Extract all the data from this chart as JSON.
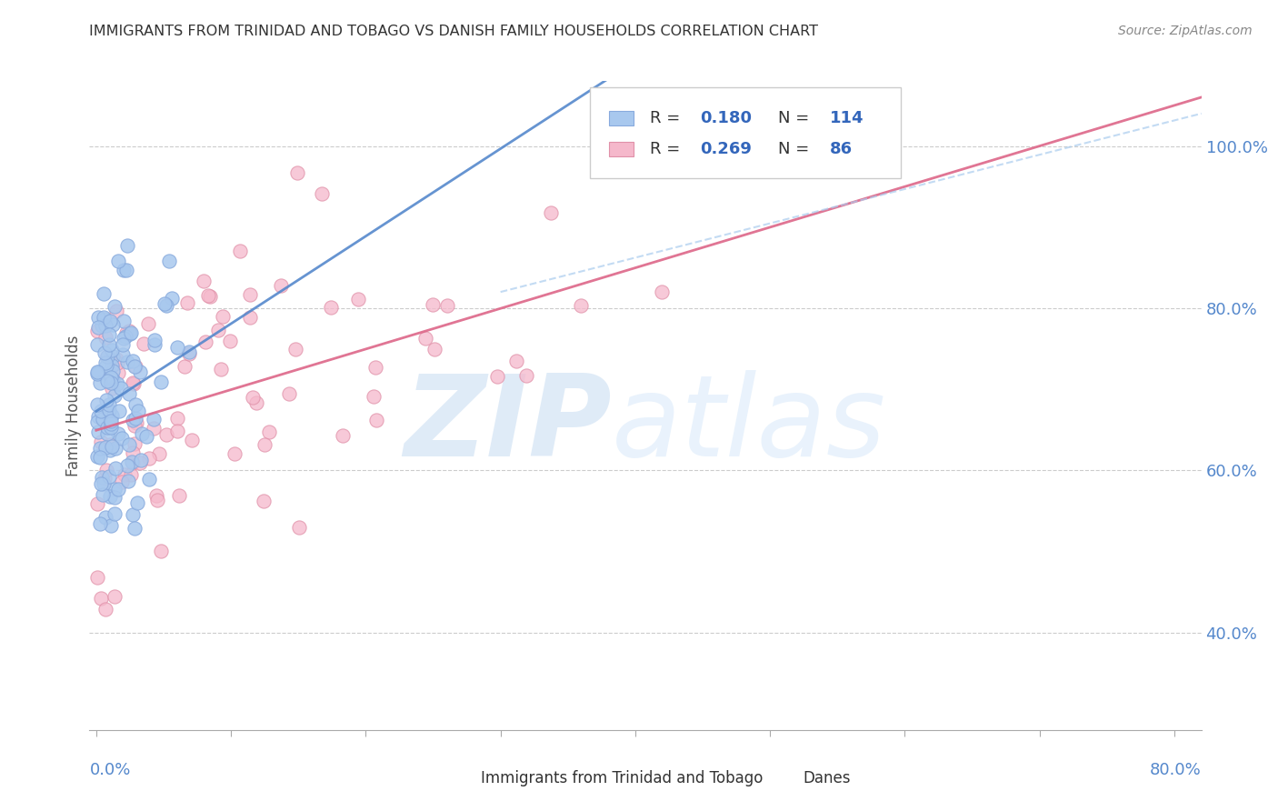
{
  "title": "IMMIGRANTS FROM TRINIDAD AND TOBAGO VS DANISH FAMILY HOUSEHOLDS CORRELATION CHART",
  "source": "Source: ZipAtlas.com",
  "ylabel": "Family Households",
  "y_ticks": [
    0.4,
    0.6,
    0.8,
    1.0
  ],
  "y_tick_labels": [
    "40.0%",
    "60.0%",
    "80.0%",
    "100.0%"
  ],
  "xlim": [
    -0.005,
    0.82
  ],
  "ylim": [
    0.28,
    1.08
  ],
  "blue_R": 0.18,
  "blue_N": 114,
  "pink_R": 0.269,
  "pink_N": 86,
  "blue_color": "#a8c8ee",
  "blue_edge_color": "#88aadd",
  "pink_color": "#f5b8cb",
  "pink_edge_color": "#e090a8",
  "trend_blue_color": "#5588cc",
  "trend_pink_color": "#dd6688",
  "trend_gray_color": "#aaccee",
  "axis_label_color": "#5588cc",
  "title_color": "#333333",
  "source_color": "#888888",
  "legend_R_color": "#3366bb",
  "watermark_zip_color": "#c0d8f0",
  "watermark_atlas_color": "#c8e0f8",
  "grid_color": "#cccccc"
}
